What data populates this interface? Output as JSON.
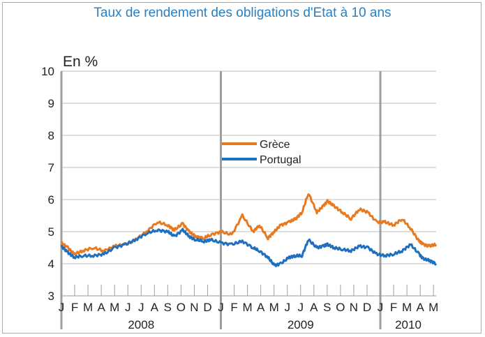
{
  "chart_data": {
    "type": "line",
    "title": "Taux de rendement des obligations d'Etat à 10 ans",
    "ylabel": "En  %",
    "xlabel": "",
    "ylim": [
      3,
      10
    ],
    "yticks": [
      3,
      4,
      5,
      6,
      7,
      8,
      9,
      10
    ],
    "xlim": [
      0,
      17.6
    ],
    "grid": true,
    "legend_position": "center",
    "month_labels": [
      "J",
      "F",
      "M",
      "A",
      "M",
      "J",
      "J",
      "A",
      "S",
      "O",
      "N",
      "D",
      "J",
      "F",
      "M",
      "A",
      "M",
      "J",
      "J",
      "A",
      "S",
      "O",
      "N",
      "D",
      "J",
      "F",
      "M",
      "A",
      "M"
    ],
    "years": [
      {
        "label": "2008",
        "start": 0,
        "end": 12
      },
      {
        "label": "2009",
        "start": 12,
        "end": 24
      },
      {
        "label": "2010",
        "start": 24,
        "end": 29
      }
    ],
    "x_unit": "months since January 2008",
    "series": [
      {
        "name": "Grèce",
        "color": "#e8791f",
        "x": [
          0,
          0.3,
          0.6,
          1.0,
          1.5,
          2.0,
          2.5,
          3.0,
          3.5,
          4.0,
          4.5,
          5.0,
          5.3,
          5.7,
          6.0,
          6.3,
          6.7,
          7.0,
          7.5,
          8.0,
          8.5,
          9.0,
          9.3,
          9.7,
          10.0,
          10.3,
          10.7,
          11.0,
          11.3,
          11.6,
          12.0,
          12.3,
          12.5,
          12.8,
          13.2,
          13.6,
          14.0,
          14.4,
          14.8,
          15.2,
          15.6,
          16.0,
          16.4,
          16.8,
          17.0,
          17.3,
          17.6
        ],
        "y": [
          4.65,
          4.5,
          4.3,
          4.4,
          4.5,
          4.4,
          4.55,
          4.6,
          4.75,
          5.0,
          5.3,
          5.2,
          5.05,
          5.25,
          5.0,
          4.85,
          4.8,
          4.9,
          5.0,
          4.9,
          5.5,
          5.0,
          5.2,
          4.8,
          5.0,
          5.2,
          5.3,
          5.4,
          5.6,
          6.2,
          5.6,
          5.8,
          5.95,
          5.8,
          5.6,
          5.4,
          5.7,
          5.6,
          5.3,
          5.3,
          5.2,
          5.4,
          5.1,
          4.7,
          4.6,
          4.55,
          4.6
        ]
      },
      {
        "name": "Portugal",
        "color": "#1f6fbf",
        "x": [
          0,
          0.3,
          0.6,
          1.0,
          1.5,
          2.0,
          2.5,
          3.0,
          3.5,
          4.0,
          4.5,
          5.0,
          5.3,
          5.7,
          6.0,
          6.3,
          6.7,
          7.0,
          7.5,
          8.0,
          8.5,
          9.0,
          9.3,
          9.7,
          10.0,
          10.3,
          10.7,
          11.0,
          11.3,
          11.6,
          12.0,
          12.3,
          12.5,
          12.8,
          13.2,
          13.6,
          14.0,
          14.4,
          14.8,
          15.2,
          15.6,
          16.0,
          16.4,
          16.8,
          17.0,
          17.3,
          17.6
        ],
        "y": [
          4.55,
          4.35,
          4.2,
          4.25,
          4.25,
          4.3,
          4.5,
          4.6,
          4.75,
          4.95,
          5.05,
          5.0,
          4.85,
          5.05,
          4.85,
          4.75,
          4.7,
          4.75,
          4.65,
          4.6,
          4.7,
          4.5,
          4.4,
          4.2,
          3.95,
          4.0,
          4.2,
          4.25,
          4.25,
          4.75,
          4.5,
          4.55,
          4.6,
          4.5,
          4.45,
          4.4,
          4.55,
          4.5,
          4.3,
          4.25,
          4.3,
          4.4,
          4.6,
          4.3,
          4.15,
          4.1,
          4.0
        ]
      }
    ]
  }
}
